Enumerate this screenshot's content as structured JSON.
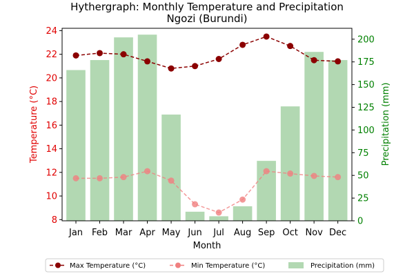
{
  "chart_data": {
    "type": "bar+line",
    "title_line1": "Hythergraph: Monthly Temperature and Precipitation",
    "title_line2": "Ngozi (Burundi)",
    "xlabel": "Month",
    "ylabel_left": "Temperature (°C)",
    "ylabel_right": "Precipitation (mm)",
    "categories": [
      "Jan",
      "Feb",
      "Mar",
      "Apr",
      "May",
      "Jun",
      "Jul",
      "Aug",
      "Sep",
      "Oct",
      "Nov",
      "Dec"
    ],
    "y_left_range": [
      7.9,
      24.2
    ],
    "y_left_ticks": [
      8,
      10,
      12,
      14,
      16,
      18,
      20,
      22,
      24
    ],
    "y_right_range": [
      0,
      212
    ],
    "y_right_ticks": [
      0,
      25,
      50,
      75,
      100,
      125,
      150,
      175,
      200
    ],
    "series": [
      {
        "name": "Max Temperature (°C)",
        "axis": "left",
        "kind": "line",
        "color": "#8b0000",
        "values": [
          21.9,
          22.1,
          22.0,
          21.4,
          20.8,
          21.0,
          21.6,
          22.8,
          23.5,
          22.7,
          21.5,
          21.4
        ]
      },
      {
        "name": "Min Temperature (°C)",
        "axis": "left",
        "kind": "line",
        "color": "#f08080",
        "values": [
          11.5,
          11.5,
          11.6,
          12.1,
          11.3,
          9.3,
          8.6,
          9.7,
          12.1,
          11.9,
          11.7,
          11.6
        ]
      },
      {
        "name": "Precipitation (mm)",
        "axis": "right",
        "kind": "bar",
        "color": "#b2d8b2",
        "values": [
          166,
          177,
          202,
          205,
          117,
          10,
          5,
          16,
          66,
          126,
          186,
          177
        ]
      }
    ],
    "legend_placement": "bottom-center",
    "grid": false
  }
}
